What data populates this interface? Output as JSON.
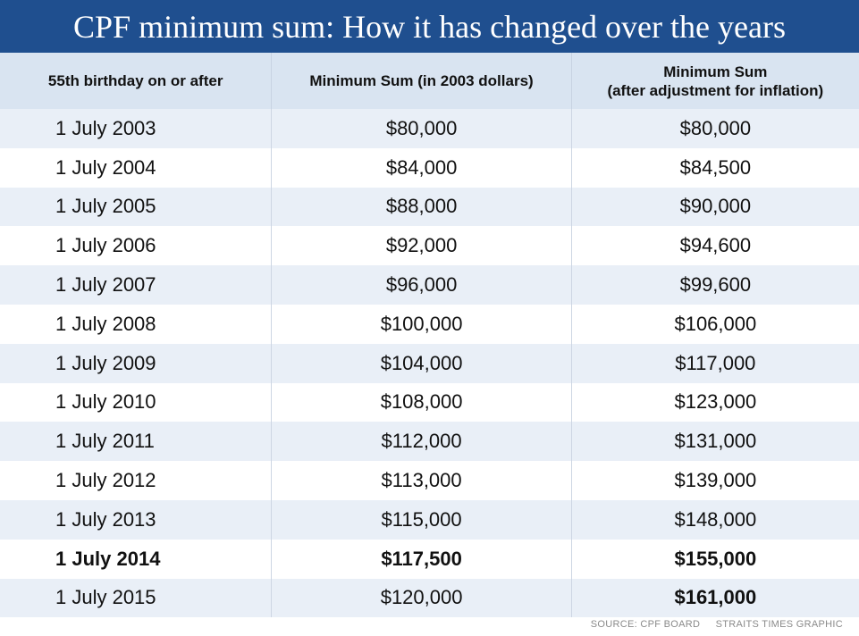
{
  "title": "CPF minimum sum: How it has changed over the years",
  "headers": {
    "col1": "55th birthday on or after",
    "col2": "Minimum Sum (in 2003 dollars)",
    "col3_line1": "Minimum Sum",
    "col3_line2": "(after adjustment for inflation)"
  },
  "rows": [
    {
      "date": "1 July 2003",
      "sum_2003": "$80,000",
      "sum_adjusted": "$80,000"
    },
    {
      "date": "1 July 2004",
      "sum_2003": "$84,000",
      "sum_adjusted": "$84,500"
    },
    {
      "date": "1 July 2005",
      "sum_2003": "$88,000",
      "sum_adjusted": "$90,000"
    },
    {
      "date": "1 July 2006",
      "sum_2003": "$92,000",
      "sum_adjusted": "$94,600"
    },
    {
      "date": "1 July 2007",
      "sum_2003": "$96,000",
      "sum_adjusted": "$99,600"
    },
    {
      "date": "1 July 2008",
      "sum_2003": "$100,000",
      "sum_adjusted": "$106,000"
    },
    {
      "date": "1 July 2009",
      "sum_2003": "$104,000",
      "sum_adjusted": "$117,000"
    },
    {
      "date": "1 July 2010",
      "sum_2003": "$108,000",
      "sum_adjusted": "$123,000"
    },
    {
      "date": "1 July 2011",
      "sum_2003": "$112,000",
      "sum_adjusted": "$131,000"
    },
    {
      "date": "1 July 2012",
      "sum_2003": "$113,000",
      "sum_adjusted": "$139,000"
    },
    {
      "date": "1 July 2013",
      "sum_2003": "$115,000",
      "sum_adjusted": "$148,000"
    },
    {
      "date": "1 July 2014",
      "sum_2003": "$117,500",
      "sum_adjusted": "$155,000"
    },
    {
      "date": "1 July 2015",
      "sum_2003": "$120,000",
      "sum_adjusted": "$161,000"
    }
  ],
  "source": "SOURCE: CPF BOARD",
  "credit": "STRAITS TIMES GRAPHIC",
  "colors": {
    "title_bg": "#1f4f8f",
    "header_bg": "#d9e4f1",
    "stripe": "#e9eff7"
  },
  "chart_data": {
    "type": "table",
    "title": "CPF minimum sum: How it has changed over the years",
    "columns": [
      "55th birthday on or after",
      "Minimum Sum (in 2003 dollars)",
      "Minimum Sum (after adjustment for inflation)"
    ],
    "rows": [
      [
        "1 July 2003",
        80000,
        80000
      ],
      [
        "1 July 2004",
        84000,
        84500
      ],
      [
        "1 July 2005",
        88000,
        90000
      ],
      [
        "1 July 2006",
        92000,
        94600
      ],
      [
        "1 July 2007",
        96000,
        99600
      ],
      [
        "1 July 2008",
        100000,
        106000
      ],
      [
        "1 July 2009",
        104000,
        117000
      ],
      [
        "1 July 2010",
        108000,
        123000
      ],
      [
        "1 July 2011",
        112000,
        131000
      ],
      [
        "1 July 2012",
        113000,
        139000
      ],
      [
        "1 July 2013",
        115000,
        148000
      ],
      [
        "1 July 2014",
        117500,
        155000
      ],
      [
        "1 July 2015",
        120000,
        161000
      ]
    ],
    "highlighted": [
      {
        "row": "1 July 2014",
        "columns": [
          "55th birthday on or after",
          "Minimum Sum (in 2003 dollars)",
          "Minimum Sum (after adjustment for inflation)"
        ]
      },
      {
        "row": "1 July 2015",
        "columns": [
          "Minimum Sum (after adjustment for inflation)"
        ]
      }
    ]
  }
}
